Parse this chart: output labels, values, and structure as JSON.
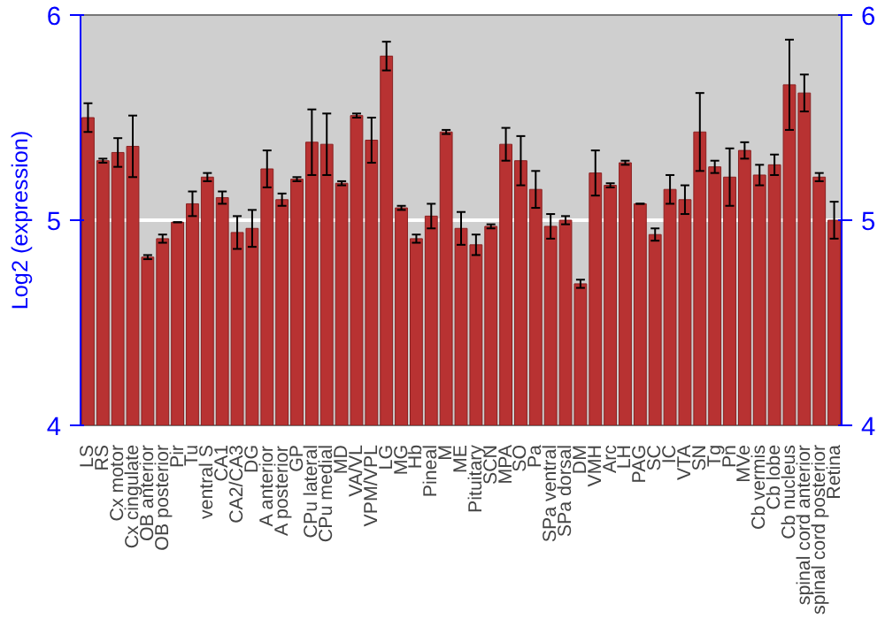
{
  "chart_data": {
    "type": "bar",
    "ylabel": "Log2 (expression)",
    "categories": [
      "LS",
      "RS",
      "Cx motor",
      "Cx cingulate",
      "OB anterior",
      "OB posterior",
      "Pir",
      "Tu",
      "ventral S",
      "CA1",
      "CA2/CA3",
      "DG",
      "A anterior",
      "A posterior",
      "GP",
      "CPu lateral",
      "CPu medial",
      "MD",
      "VA/VL",
      "VPM/VPL",
      "LG",
      "MG",
      "Hb",
      "Pineal",
      "M",
      "ME",
      "Pituitary",
      "SCN",
      "MPA",
      "SO",
      "Pa",
      "SPa ventral",
      "SPa dorsal",
      "DM",
      "VMH",
      "Arc",
      "LH",
      "PAG",
      "SC",
      "IC",
      "VTA",
      "SN",
      "Tg",
      "Pn",
      "MVe",
      "Cb vermis",
      "Cb lobe",
      "Cb nucleus",
      "spinal cord anterior",
      "spinal cord posterior",
      "Retina"
    ],
    "series": [
      {
        "color": "#b83232",
        "values": [
          5.5,
          5.29,
          5.33,
          5.36,
          4.82,
          4.91,
          4.99,
          5.08,
          5.21,
          5.11,
          4.94,
          4.96,
          5.25,
          5.1,
          5.2,
          5.38,
          5.37,
          5.18,
          5.51,
          5.39,
          5.8,
          5.06,
          4.91,
          5.02,
          5.43,
          4.96,
          4.88,
          4.97,
          5.37,
          5.29,
          5.15,
          4.97,
          5.0,
          4.69,
          5.23,
          5.17,
          5.28,
          5.08,
          4.93,
          5.15,
          5.1,
          5.43,
          5.26,
          5.21,
          5.34,
          5.22,
          5.27,
          5.66,
          5.62,
          5.21,
          5.0
        ],
        "errors": [
          0.07,
          0.01,
          0.07,
          0.15,
          0.01,
          0.02,
          0.0,
          0.06,
          0.02,
          0.03,
          0.08,
          0.09,
          0.09,
          0.03,
          0.01,
          0.16,
          0.15,
          0.01,
          0.01,
          0.11,
          0.07,
          0.01,
          0.02,
          0.06,
          0.01,
          0.08,
          0.05,
          0.01,
          0.08,
          0.12,
          0.09,
          0.06,
          0.02,
          0.02,
          0.11,
          0.01,
          0.01,
          0.0,
          0.03,
          0.07,
          0.07,
          0.19,
          0.03,
          0.14,
          0.04,
          0.05,
          0.05,
          0.22,
          0.09,
          0.02,
          0.09
        ]
      }
    ],
    "ylim": [
      4,
      6
    ],
    "yticks": [
      4,
      5,
      6
    ],
    "y2lim": [
      4,
      6
    ],
    "y2ticks": [
      4,
      5,
      6
    ],
    "grid": "y"
  }
}
